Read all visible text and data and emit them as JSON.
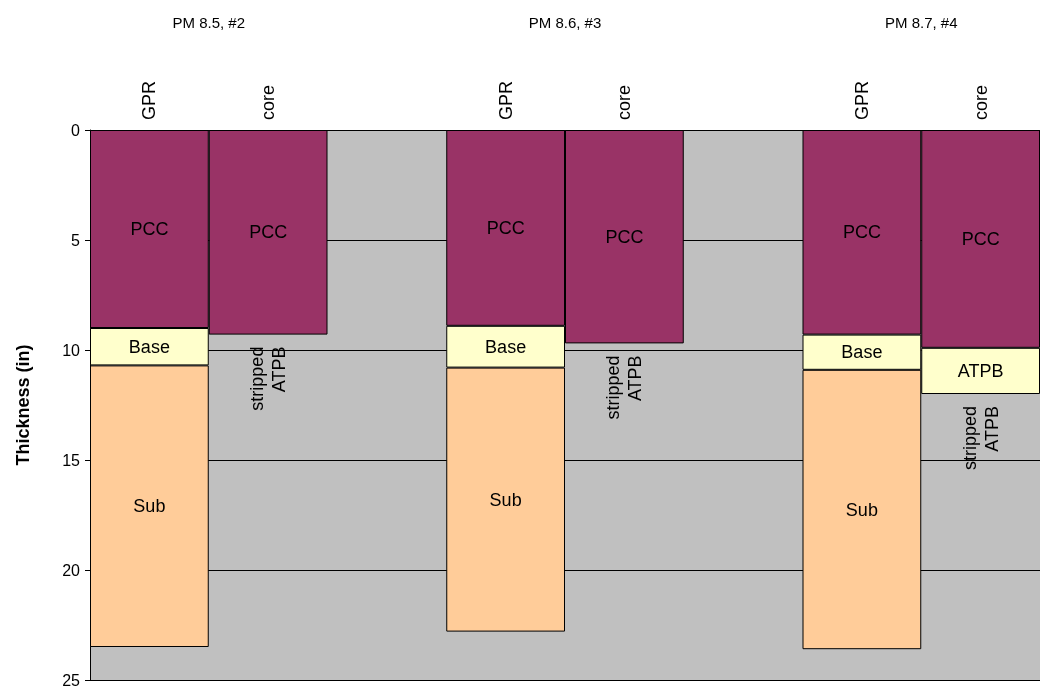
{
  "chart_data": {
    "type": "bar",
    "stacked": true,
    "ylabel": "Thickness (in)",
    "categories": [
      "GPR",
      "core",
      null,
      "GPR",
      "core",
      null,
      "GPR",
      "core"
    ],
    "series": [
      {
        "name": "PCC",
        "color": "#993366",
        "values": [
          9.0,
          9.3,
          null,
          8.9,
          9.7,
          null,
          9.3,
          9.9
        ]
      },
      {
        "name": "Base",
        "color": "#ffffcc",
        "values": [
          1.7,
          null,
          null,
          1.9,
          null,
          null,
          1.6,
          null
        ]
      },
      {
        "name": "ATPB",
        "color": "#ffffcc",
        "values": [
          null,
          null,
          null,
          null,
          null,
          null,
          null,
          2.1
        ]
      },
      {
        "name": "Sub",
        "color": "#ffcc99",
        "values": [
          12.8,
          null,
          null,
          12.0,
          null,
          null,
          12.7,
          null
        ]
      }
    ],
    "ylim": [
      25,
      0
    ],
    "yticks": [
      0,
      5,
      10,
      15,
      20,
      25
    ],
    "grid": "y",
    "legend": false,
    "annotations": [
      "PM 8.5, #2",
      "PM 8.6, #3",
      "PM 8.7, #4",
      "stripped ATPB",
      "stripped ATPB",
      "stripped ATPB"
    ]
  }
}
